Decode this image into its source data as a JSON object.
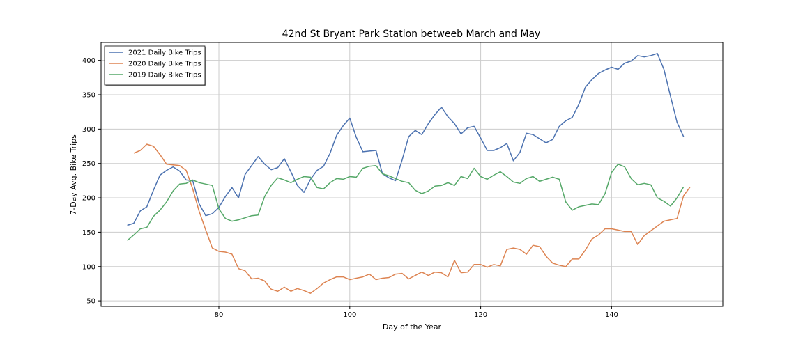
{
  "chart_data": {
    "type": "line",
    "title": "42nd St Bryant Park Station betweeb March and May",
    "xlabel": "Day of the Year",
    "ylabel": "7-Day Avg. Bike Trips",
    "xlim": [
      62,
      157
    ],
    "ylim": [
      42,
      426
    ],
    "xticks": [
      80,
      100,
      120,
      140
    ],
    "yticks": [
      50,
      100,
      150,
      200,
      250,
      300,
      350,
      400
    ],
    "grid": true,
    "legend_position": "top-left",
    "series": [
      {
        "name": "2021 Daily Bike Trips",
        "color": "#4c72b0",
        "x": [
          66,
          67,
          68,
          69,
          70,
          71,
          72,
          73,
          74,
          75,
          76,
          77,
          78,
          79,
          80,
          81,
          82,
          83,
          84,
          85,
          86,
          87,
          88,
          89,
          90,
          91,
          92,
          93,
          94,
          95,
          96,
          97,
          98,
          99,
          100,
          101,
          102,
          103,
          104,
          105,
          106,
          107,
          108,
          109,
          110,
          111,
          112,
          113,
          114,
          115,
          116,
          117,
          118,
          119,
          120,
          121,
          122,
          123,
          124,
          125,
          126,
          127,
          128,
          129,
          130,
          131,
          132,
          133,
          134,
          135,
          136,
          137,
          138,
          139,
          140,
          141,
          142,
          143,
          144,
          145,
          146,
          147,
          148,
          149,
          150,
          151
        ],
        "y": [
          160,
          163,
          181,
          187,
          211,
          233,
          240,
          245,
          239,
          226,
          225,
          191,
          174,
          177,
          186,
          202,
          215,
          200,
          234,
          247,
          260,
          249,
          241,
          244,
          257,
          238,
          218,
          208,
          227,
          240,
          246,
          265,
          291,
          305,
          316,
          288,
          267,
          268,
          269,
          235,
          229,
          225,
          255,
          289,
          298,
          292,
          308,
          321,
          332,
          318,
          308,
          293,
          302,
          304,
          287,
          269,
          269,
          273,
          279,
          254,
          266,
          294,
          292,
          286,
          280,
          285,
          304,
          312,
          317,
          336,
          361,
          372,
          381,
          386,
          390,
          387,
          396,
          399,
          407,
          405,
          407,
          410,
          387,
          348,
          310,
          289
        ]
      },
      {
        "name": "2020 Daily Bike Trips",
        "color": "#dd8452",
        "x": [
          67,
          68,
          69,
          70,
          71,
          72,
          73,
          74,
          75,
          76,
          77,
          78,
          79,
          80,
          81,
          82,
          83,
          84,
          85,
          86,
          87,
          88,
          89,
          90,
          91,
          92,
          93,
          94,
          95,
          96,
          97,
          98,
          99,
          100,
          101,
          102,
          103,
          104,
          105,
          106,
          107,
          108,
          109,
          110,
          111,
          112,
          113,
          114,
          115,
          116,
          117,
          118,
          119,
          120,
          121,
          122,
          123,
          124,
          125,
          126,
          127,
          128,
          129,
          130,
          131,
          132,
          133,
          134,
          135,
          136,
          137,
          138,
          139,
          140,
          141,
          142,
          143,
          144,
          145,
          146,
          147,
          148,
          149,
          150,
          151,
          152
        ],
        "y": [
          265,
          269,
          278,
          275,
          263,
          249,
          248,
          247,
          240,
          213,
          180,
          153,
          127,
          122,
          121,
          118,
          97,
          94,
          82,
          83,
          79,
          67,
          64,
          70,
          64,
          68,
          65,
          61,
          68,
          76,
          81,
          85,
          85,
          81,
          83,
          85,
          89,
          81,
          83,
          84,
          89,
          90,
          82,
          87,
          92,
          87,
          92,
          91,
          85,
          109,
          91,
          92,
          103,
          103,
          99,
          103,
          101,
          125,
          127,
          125,
          118,
          131,
          129,
          115,
          105,
          102,
          100,
          111,
          111,
          124,
          140,
          146,
          155,
          155,
          153,
          151,
          151,
          132,
          145,
          152,
          159,
          166,
          168,
          170,
          203,
          216
        ]
      },
      {
        "name": "2019 Daily Bike Trips",
        "color": "#55a868",
        "x": [
          66,
          67,
          68,
          69,
          70,
          71,
          72,
          73,
          74,
          75,
          76,
          77,
          78,
          79,
          80,
          81,
          82,
          83,
          84,
          85,
          86,
          87,
          88,
          89,
          90,
          91,
          92,
          93,
          94,
          95,
          96,
          97,
          98,
          99,
          100,
          101,
          102,
          103,
          104,
          105,
          106,
          107,
          108,
          109,
          110,
          111,
          112,
          113,
          114,
          115,
          116,
          117,
          118,
          119,
          120,
          121,
          122,
          123,
          124,
          125,
          126,
          127,
          128,
          129,
          130,
          131,
          132,
          133,
          134,
          135,
          136,
          137,
          138,
          139,
          140,
          141,
          142,
          143,
          144,
          145,
          146,
          147,
          148,
          149,
          150,
          151
        ],
        "y": [
          138,
          146,
          155,
          157,
          173,
          182,
          194,
          210,
          220,
          221,
          226,
          222,
          220,
          218,
          184,
          170,
          166,
          168,
          171,
          174,
          175,
          202,
          218,
          229,
          226,
          222,
          227,
          231,
          230,
          215,
          213,
          222,
          228,
          227,
          231,
          230,
          243,
          246,
          247,
          235,
          232,
          228,
          224,
          222,
          211,
          206,
          210,
          217,
          218,
          222,
          218,
          231,
          228,
          243,
          231,
          227,
          233,
          238,
          231,
          223,
          221,
          228,
          231,
          224,
          227,
          230,
          227,
          194,
          182,
          187,
          189,
          191,
          190,
          206,
          237,
          249,
          245,
          228,
          219,
          221,
          219,
          200,
          195,
          188,
          200,
          216
        ]
      }
    ]
  }
}
